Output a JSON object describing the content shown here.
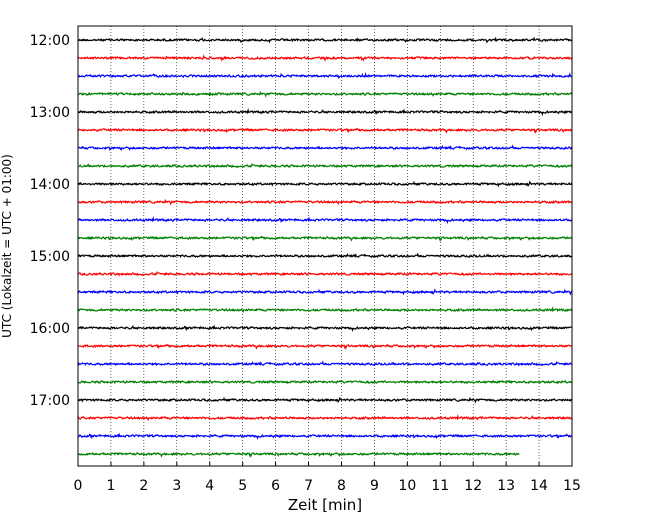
{
  "chart_data": {
    "type": "line",
    "title": "",
    "xlabel": "Zeit  [min]",
    "ylabel": "UTC (Lokalzeit = UTC + 01:00)",
    "xlim": [
      0,
      15
    ],
    "x_ticks": [
      0,
      1,
      2,
      3,
      4,
      5,
      6,
      7,
      8,
      9,
      10,
      11,
      12,
      13,
      14,
      15
    ],
    "x_grid": "dotted",
    "y_ticks": [
      {
        "row": 0,
        "label": "12:00"
      },
      {
        "row": 4,
        "label": "13:00"
      },
      {
        "row": 8,
        "label": "14:00"
      },
      {
        "row": 12,
        "label": "15:00"
      },
      {
        "row": 16,
        "label": "16:00"
      },
      {
        "row": 20,
        "label": "17:00"
      }
    ],
    "row_interval_minutes": 15,
    "row_count": 24,
    "row_colors": [
      "#000000",
      "#ff0000",
      "#0000ff",
      "#007f00"
    ],
    "last_row_end_min": 13.4,
    "legend": "none"
  }
}
